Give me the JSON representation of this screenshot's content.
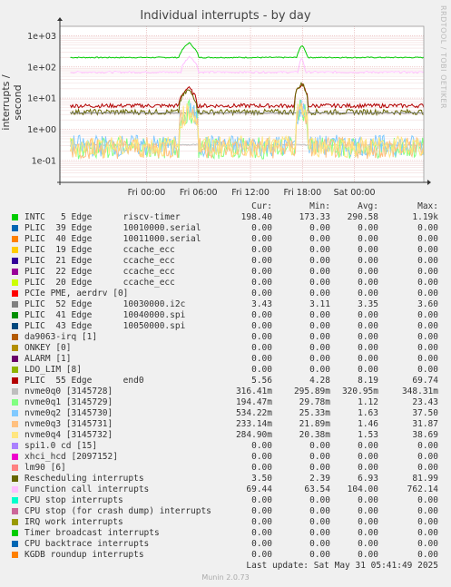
{
  "title": "Individual interrupts - by day",
  "watermark": "RRDTOOL / TOBI OETIKER",
  "ylabel": "interrupts / second",
  "legend_headers": [
    "Cur:",
    "Min:",
    "Avg:",
    "Max:"
  ],
  "legend": [
    {
      "name": "INTC   5 Edge      riscv-timer",
      "color": "#00cc00",
      "cur": "198.40",
      "min": "173.33",
      "avg": "290.58",
      "max": "1.19k"
    },
    {
      "name": "PLIC  39 Edge      10010000.serial",
      "color": "#0066b3",
      "cur": "0.00",
      "min": "0.00",
      "avg": "0.00",
      "max": "0.00"
    },
    {
      "name": "PLIC  40 Edge      10011000.serial",
      "color": "#ff8000",
      "cur": "0.00",
      "min": "0.00",
      "avg": "0.00",
      "max": "0.00"
    },
    {
      "name": "PLIC  19 Edge      ccache_ecc",
      "color": "#ffcc00",
      "cur": "0.00",
      "min": "0.00",
      "avg": "0.00",
      "max": "0.00"
    },
    {
      "name": "PLIC  21 Edge      ccache_ecc",
      "color": "#330099",
      "cur": "0.00",
      "min": "0.00",
      "avg": "0.00",
      "max": "0.00"
    },
    {
      "name": "PLIC  22 Edge      ccache_ecc",
      "color": "#990099",
      "cur": "0.00",
      "min": "0.00",
      "avg": "0.00",
      "max": "0.00"
    },
    {
      "name": "PLIC  20 Edge      ccache_ecc",
      "color": "#ccff00",
      "cur": "0.00",
      "min": "0.00",
      "avg": "0.00",
      "max": "0.00"
    },
    {
      "name": "PCIe PME, aerdrv [0]",
      "color": "#ff0000",
      "cur": "0.00",
      "min": "0.00",
      "avg": "0.00",
      "max": "0.00"
    },
    {
      "name": "PLIC  52 Edge      10030000.i2c",
      "color": "#808080",
      "cur": "3.43",
      "min": "3.11",
      "avg": "3.35",
      "max": "3.60"
    },
    {
      "name": "PLIC  41 Edge      10040000.spi",
      "color": "#008f00",
      "cur": "0.00",
      "min": "0.00",
      "avg": "0.00",
      "max": "0.00"
    },
    {
      "name": "PLIC  43 Edge      10050000.spi",
      "color": "#00487d",
      "cur": "0.00",
      "min": "0.00",
      "avg": "0.00",
      "max": "0.00"
    },
    {
      "name": "da9063-irq [1]",
      "color": "#b35a00",
      "cur": "0.00",
      "min": "0.00",
      "avg": "0.00",
      "max": "0.00"
    },
    {
      "name": "ONKEY [0]",
      "color": "#b38f00",
      "cur": "0.00",
      "min": "0.00",
      "avg": "0.00",
      "max": "0.00"
    },
    {
      "name": "ALARM [1]",
      "color": "#6b006b",
      "cur": "0.00",
      "min": "0.00",
      "avg": "0.00",
      "max": "0.00"
    },
    {
      "name": "LDO_LIM [8]",
      "color": "#8fb300",
      "cur": "0.00",
      "min": "0.00",
      "avg": "0.00",
      "max": "0.00"
    },
    {
      "name": "PLIC  55 Edge      end0",
      "color": "#b30000",
      "cur": "5.56",
      "min": "4.28",
      "avg": "8.19",
      "max": "69.74"
    },
    {
      "name": "nvme0q0 [3145728]",
      "color": "#bebebe",
      "cur": "316.41m",
      "min": "295.89m",
      "avg": "320.95m",
      "max": "348.31m"
    },
    {
      "name": "nvme0q1 [3145729]",
      "color": "#80ff80",
      "cur": "194.47m",
      "min": "29.78m",
      "avg": "1.12",
      "max": "23.43"
    },
    {
      "name": "nvme0q2 [3145730]",
      "color": "#80c9ff",
      "cur": "534.22m",
      "min": "25.33m",
      "avg": "1.63",
      "max": "37.50"
    },
    {
      "name": "nvme0q3 [3145731]",
      "color": "#ffc080",
      "cur": "233.14m",
      "min": "21.89m",
      "avg": "1.46",
      "max": "31.87"
    },
    {
      "name": "nvme0q4 [3145732]",
      "color": "#ffe680",
      "cur": "284.90m",
      "min": "20.38m",
      "avg": "1.53",
      "max": "38.69"
    },
    {
      "name": "spi1.0 cd [15]",
      "color": "#aa80ff",
      "cur": "0.00",
      "min": "0.00",
      "avg": "0.00",
      "max": "0.00"
    },
    {
      "name": "xhci_hcd [2097152]",
      "color": "#ee00cc",
      "cur": "0.00",
      "min": "0.00",
      "avg": "0.00",
      "max": "0.00"
    },
    {
      "name": "lm90 [6]",
      "color": "#ff8080",
      "cur": "0.00",
      "min": "0.00",
      "avg": "0.00",
      "max": "0.00"
    },
    {
      "name": "Rescheduling interrupts",
      "color": "#666600",
      "cur": "3.50",
      "min": "2.39",
      "avg": "6.93",
      "max": "81.99"
    },
    {
      "name": "Function call interrupts",
      "color": "#ffbfff",
      "cur": "69.44",
      "min": "63.54",
      "avg": "104.00",
      "max": "762.14"
    },
    {
      "name": "CPU stop interrupts",
      "color": "#00ffcc",
      "cur": "0.00",
      "min": "0.00",
      "avg": "0.00",
      "max": "0.00"
    },
    {
      "name": "CPU stop (for crash dump) interrupts",
      "color": "#cc6699",
      "cur": "0.00",
      "min": "0.00",
      "avg": "0.00",
      "max": "0.00"
    },
    {
      "name": "IRQ work interrupts",
      "color": "#999900",
      "cur": "0.00",
      "min": "0.00",
      "avg": "0.00",
      "max": "0.00"
    },
    {
      "name": "Timer broadcast interrupts",
      "color": "#00cc00",
      "cur": "0.00",
      "min": "0.00",
      "avg": "0.00",
      "max": "0.00"
    },
    {
      "name": "CPU backtrace interrupts",
      "color": "#0066b3",
      "cur": "0.00",
      "min": "0.00",
      "avg": "0.00",
      "max": "0.00"
    },
    {
      "name": "KGDB roundup interrupts",
      "color": "#ff8000",
      "cur": "0.00",
      "min": "0.00",
      "avg": "0.00",
      "max": "0.00"
    }
  ],
  "last_update": "Last update: Sat May 31 05:41:49 2025",
  "footer": "Munin 2.0.73",
  "chart_data": {
    "type": "line",
    "yscale": "log",
    "ylim": [
      0.02,
      2000
    ],
    "yticks": [
      {
        "v": 1000,
        "label": "1e+03"
      },
      {
        "v": 100,
        "label": "1e+02"
      },
      {
        "v": 10,
        "label": "1e+01"
      },
      {
        "v": 1,
        "label": "1e+00"
      },
      {
        "v": 0.1,
        "label": "1e-01"
      }
    ],
    "x_hours_range": [
      -10,
      32
    ],
    "xticks": [
      {
        "h": 0,
        "label": "Fri 00:00"
      },
      {
        "h": 6,
        "label": "Fri 06:00"
      },
      {
        "h": 12,
        "label": "Fri 12:00"
      },
      {
        "h": 18,
        "label": "Fri 18:00"
      },
      {
        "h": 24,
        "label": "Sat 00:00"
      }
    ],
    "series": [
      {
        "name": "INTC   5 Edge      riscv-timer",
        "color": "#00cc00",
        "base": 200,
        "jitter": 0.04,
        "bursts": [
          [
            3.8,
            6.0,
            600
          ],
          [
            17.3,
            18.6,
            500
          ]
        ]
      },
      {
        "name": "Function call interrupts",
        "color": "#ffbfff",
        "base": 68,
        "jitter": 0.06,
        "bursts": [
          [
            4.0,
            6.0,
            220
          ],
          [
            17.5,
            18.3,
            200
          ]
        ]
      },
      {
        "name": "PLIC  55 Edge      end0",
        "color": "#b30000",
        "base": 5.7,
        "jitter": 0.15,
        "bursts": [
          [
            3.8,
            5.8,
            22
          ],
          [
            17.1,
            18.6,
            28
          ]
        ]
      },
      {
        "name": "Rescheduling interrupts",
        "color": "#666600",
        "base": 3.6,
        "jitter": 0.2,
        "bursts": [
          [
            3.8,
            5.8,
            18
          ],
          [
            17.1,
            18.6,
            30
          ]
        ]
      },
      {
        "name": "PLIC  52 Edge      10030000.i2c",
        "color": "#808080",
        "base": 3.35,
        "jitter": 0.03,
        "bursts": []
      },
      {
        "name": "nvme0q0 [3145728]",
        "color": "#bebebe",
        "base": 0.32,
        "jitter": 0.05,
        "bursts": []
      },
      {
        "name": "nvme0q1 [3145729]",
        "color": "#80ff80",
        "base": 0.25,
        "jitter": 0.8,
        "bursts": [
          [
            3.8,
            6.0,
            4
          ],
          [
            17.2,
            18.6,
            5
          ]
        ]
      },
      {
        "name": "nvme0q2 [3145730]",
        "color": "#80c9ff",
        "base": 0.3,
        "jitter": 0.8,
        "bursts": [
          [
            3.8,
            6.0,
            4
          ],
          [
            17.2,
            18.6,
            5
          ]
        ]
      },
      {
        "name": "nvme0q3 [3145731]",
        "color": "#ffc080",
        "base": 0.25,
        "jitter": 0.8,
        "bursts": [
          [
            3.8,
            6.0,
            4
          ],
          [
            17.2,
            18.6,
            5
          ]
        ]
      },
      {
        "name": "nvme0q4 [3145732]",
        "color": "#ffe680",
        "base": 0.28,
        "jitter": 0.8,
        "bursts": [
          [
            3.8,
            6.0,
            4
          ],
          [
            17.2,
            18.6,
            5
          ]
        ]
      }
    ]
  }
}
